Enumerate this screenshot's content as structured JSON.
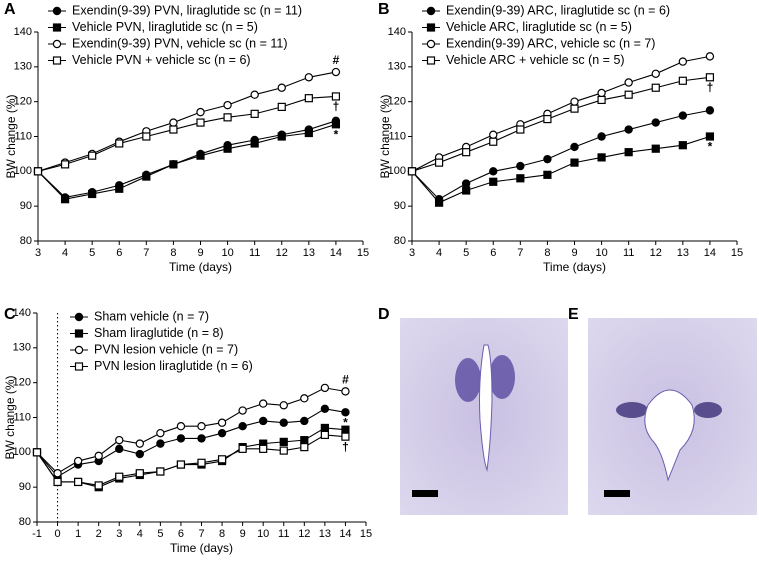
{
  "chart_data": [
    {
      "type": "line",
      "panel": "A",
      "xlabel": "Time (days)",
      "ylabel": "BW change (%)",
      "x": [
        3,
        4,
        5,
        6,
        7,
        8,
        9,
        10,
        11,
        12,
        13,
        14
      ],
      "xlim": [
        3,
        15
      ],
      "xticks": [
        3,
        4,
        5,
        6,
        7,
        8,
        9,
        10,
        11,
        12,
        13,
        14,
        15
      ],
      "ylim": [
        80,
        140
      ],
      "yticks": [
        80,
        90,
        100,
        110,
        120,
        130,
        140
      ],
      "legend": "top-left",
      "series": [
        {
          "name": "Exendin(9-39) PVN, liraglutide sc (n = 11)",
          "color": "#000000",
          "marker": "circle",
          "fill": "filled",
          "values": [
            100,
            92.5,
            94,
            96,
            99,
            102,
            105,
            107.5,
            109,
            110.5,
            112,
            114.5
          ]
        },
        {
          "name": "Vehicle PVN, liraglutide sc (n = 5)",
          "color": "#000000",
          "marker": "square",
          "fill": "filled",
          "values": [
            100,
            92,
            93.5,
            95,
            98.5,
            102,
            104.5,
            106.5,
            108,
            110,
            111,
            113.5
          ]
        },
        {
          "name": "Exendin(9-39) PVN, vehicle sc (n = 11)",
          "color": "#000000",
          "marker": "circle",
          "fill": "open",
          "values": [
            100,
            102.5,
            105,
            108.5,
            111.5,
            114,
            117,
            119,
            122,
            124,
            127,
            128.5
          ]
        },
        {
          "name": "Vehicle PVN + vehicle sc (n = 6)",
          "color": "#000000",
          "marker": "square",
          "fill": "open",
          "values": [
            100,
            102,
            104.5,
            108,
            110,
            112,
            114,
            115.5,
            116.5,
            118.5,
            121,
            121.5
          ]
        }
      ],
      "annotations": [
        {
          "text": "#",
          "series": 2,
          "placement": "above"
        },
        {
          "text": "†",
          "series": 3,
          "placement": "below"
        },
        {
          "text": "*",
          "series": 1,
          "placement": "below"
        }
      ]
    },
    {
      "type": "line",
      "panel": "B",
      "xlabel": "Time (days)",
      "ylabel": "BW change (%)",
      "x": [
        3,
        4,
        5,
        6,
        7,
        8,
        9,
        10,
        11,
        12,
        13,
        14
      ],
      "xlim": [
        3,
        15
      ],
      "xticks": [
        3,
        4,
        5,
        6,
        7,
        8,
        9,
        10,
        11,
        12,
        13,
        14,
        15
      ],
      "ylim": [
        80,
        140
      ],
      "yticks": [
        80,
        90,
        100,
        110,
        120,
        130,
        140
      ],
      "legend": "top-left",
      "series": [
        {
          "name": "Exendin(9-39) ARC, liraglutide sc (n = 6)",
          "color": "#000000",
          "marker": "circle",
          "fill": "filled",
          "values": [
            100,
            92,
            96.5,
            100,
            101.5,
            103.5,
            107,
            110,
            112,
            114,
            116,
            117.5
          ]
        },
        {
          "name": "Vehicle ARC, liraglutide sc (n = 5)",
          "color": "#000000",
          "marker": "square",
          "fill": "filled",
          "values": [
            100,
            91,
            94.5,
            97,
            98,
            99,
            102.5,
            104,
            105.5,
            106.5,
            107.5,
            110
          ]
        },
        {
          "name": "Exendin(9-39) ARC, vehicle sc (n = 7)",
          "color": "#000000",
          "marker": "circle",
          "fill": "open",
          "values": [
            100,
            104,
            107,
            110.5,
            113.5,
            116.5,
            120,
            122.5,
            125.5,
            128,
            131.5,
            133
          ]
        },
        {
          "name": "Vehicle ARC + vehicle sc (n = 5)",
          "color": "#000000",
          "marker": "square",
          "fill": "open",
          "values": [
            100,
            102.5,
            105.5,
            108.5,
            112,
            115,
            118,
            120.5,
            122,
            124,
            126,
            127
          ]
        }
      ],
      "annotations": [
        {
          "text": "†",
          "series": 3,
          "placement": "below"
        },
        {
          "text": "*",
          "series": 1,
          "placement": "below"
        }
      ]
    },
    {
      "type": "line",
      "panel": "C",
      "xlabel": "Time (days)",
      "ylabel": "BW change (%)",
      "x": [
        -1,
        0,
        1,
        2,
        3,
        4,
        5,
        6,
        7,
        8,
        9,
        10,
        11,
        12,
        13,
        14
      ],
      "xlim": [
        -1,
        15
      ],
      "xticks": [
        -1,
        0,
        1,
        2,
        3,
        4,
        5,
        6,
        7,
        8,
        9,
        10,
        11,
        12,
        13,
        14,
        15
      ],
      "ylim": [
        80,
        140
      ],
      "yticks": [
        80,
        90,
        100,
        110,
        120,
        130,
        140
      ],
      "legend": "top-left",
      "vline": 0,
      "series": [
        {
          "name": "Sham vehicle (n = 7)",
          "color": "#000000",
          "marker": "circle",
          "fill": "filled",
          "values": [
            100,
            93,
            96.5,
            97.5,
            101,
            99.5,
            102.5,
            104,
            104,
            105.5,
            107.5,
            109,
            108.5,
            109,
            112.5,
            111.5
          ]
        },
        {
          "name": "Sham liraglutide (n = 8)",
          "color": "#000000",
          "marker": "square",
          "fill": "filled",
          "values": [
            100,
            91.5,
            91.5,
            90,
            92.5,
            93.5,
            94.5,
            96.5,
            96.5,
            97.5,
            101.5,
            102.5,
            103,
            103.5,
            107,
            106.5
          ]
        },
        {
          "name": "PVN lesion vehicle (n = 7)",
          "color": "#000000",
          "marker": "circle",
          "fill": "open",
          "values": [
            100,
            94,
            97.5,
            99,
            103.5,
            102.5,
            105.5,
            107.5,
            107.5,
            108.5,
            112,
            114,
            113.5,
            115.5,
            118.5,
            117.5
          ]
        },
        {
          "name": "PVN lesion liraglutide (n = 6)",
          "color": "#000000",
          "marker": "square",
          "fill": "open",
          "values": [
            100,
            91.5,
            91.5,
            90.5,
            93,
            94,
            94.5,
            96.5,
            97,
            98,
            101,
            101,
            100.5,
            101.5,
            105,
            104.5
          ]
        }
      ],
      "annotations": [
        {
          "text": "#",
          "series": 2,
          "placement": "above"
        },
        {
          "text": "*",
          "series": 0,
          "placement": "below"
        },
        {
          "text": "†",
          "series": 3,
          "placement": "below"
        }
      ]
    }
  ],
  "images": [
    {
      "label": "D"
    },
    {
      "label": "E"
    }
  ]
}
